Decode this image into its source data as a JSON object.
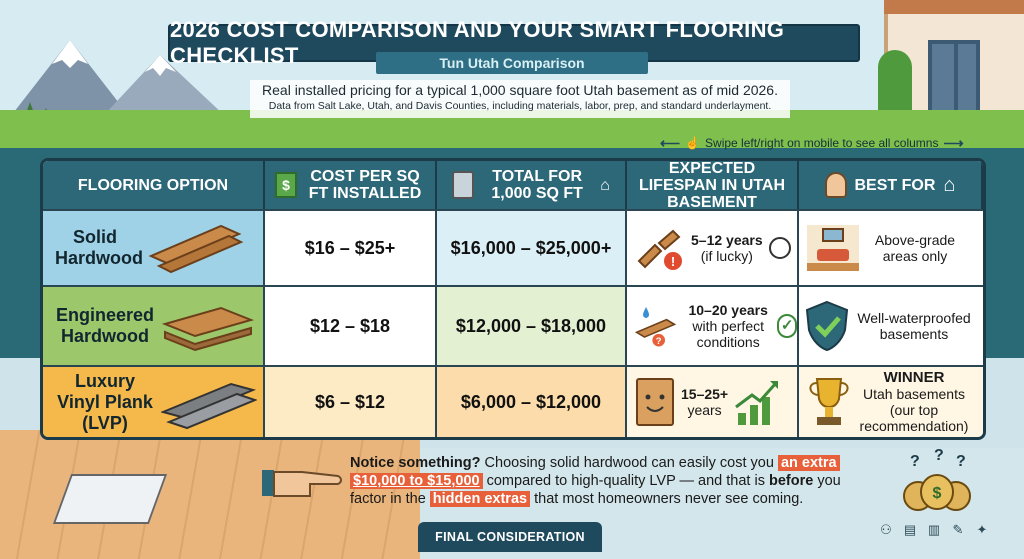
{
  "header": {
    "title": "2026 COST COMPARISON AND YOUR SMART FLOORING CHECKLIST",
    "subtitle": "Tun Utah Comparison",
    "intro": "Real installed pricing for a typical 1,000 square foot Utah basement as of mid 2026.",
    "intro_sub": "Data from Salt Lake, Utah, and Davis Counties, including materials, labor, prep, and standard underlayment."
  },
  "swipe_hint": "Swipe left/right on mobile to see all columns",
  "table": {
    "headers": {
      "option": "FLOORING OPTION",
      "cost": "COST PER SQ FT INSTALLED",
      "total": "TOTAL FOR 1,000 SQ FT",
      "lifespan": "EXPECTED LIFESPAN IN UTAH BASEMENT",
      "best": "BEST FOR"
    },
    "rows": [
      {
        "option": "Solid Hardwood",
        "cost": "$16 – $25+",
        "total": "$16,000 – $25,000+",
        "lifespan_main": "5–12 years",
        "lifespan_note": "(if lucky)",
        "best_title": "",
        "best": "Above-grade areas only"
      },
      {
        "option": "Engineered Hardwood",
        "cost": "$12 – $18",
        "total": "$12,000 – $18,000",
        "lifespan_main": "10–20 years",
        "lifespan_note": "with perfect conditions",
        "best_title": "",
        "best": "Well-waterproofed basements"
      },
      {
        "option": "Luxury Vinyl Plank (LVP)",
        "cost": "$6 – $12",
        "total": "$6,000 – $12,000",
        "lifespan_main": "15–25+",
        "lifespan_note": "years",
        "best_title": "WINNER",
        "best": "Utah basements (our top recommendation)"
      }
    ]
  },
  "callout": {
    "lead": "Notice something?",
    "part1": "Choosing solid hardwood can easily cost you",
    "hl1": "an extra",
    "hl2": "$10,000 to $15,000",
    "part2": "compared to high-quality LVP — and that is",
    "bold": "before",
    "part3": "you factor in the",
    "hl3": "hidden extras",
    "part4": "that most homeowners never see coming."
  },
  "footer": {
    "label": "FINAL CONSIDERATION"
  },
  "colors": {
    "banner": "#1f4a5e",
    "header_row": "#2d6878",
    "row1": "#9fd2e6",
    "row2": "#9cc76a",
    "row3": "#f4b94a",
    "highlight": "#e8603a"
  }
}
